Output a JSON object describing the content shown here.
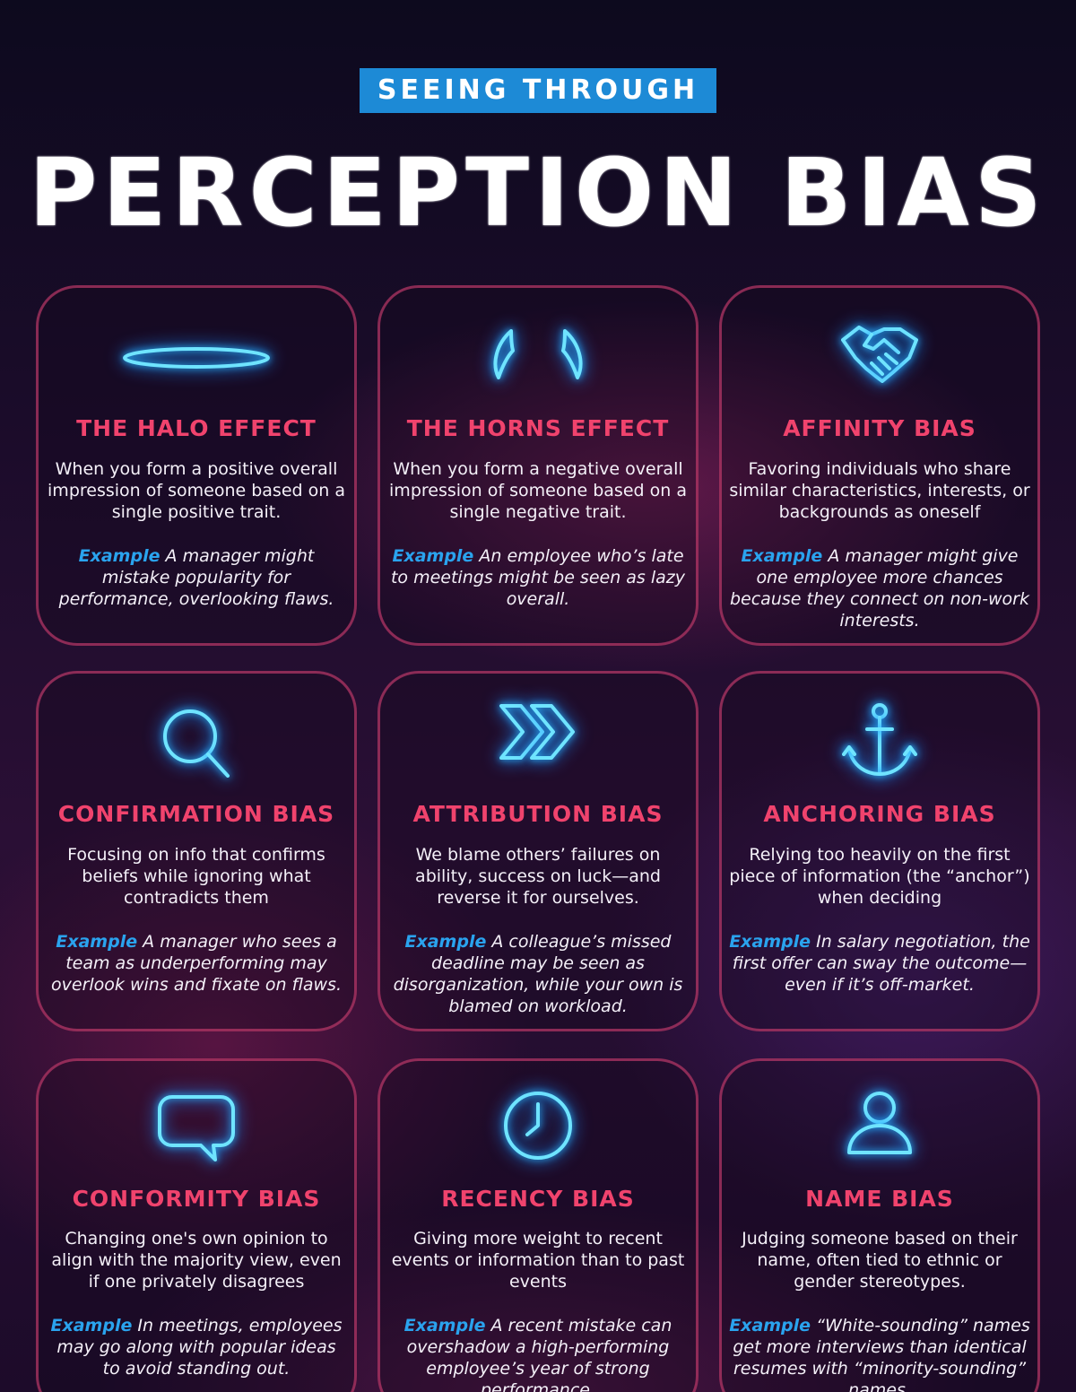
{
  "header": {
    "kicker": "SEEING THROUGH",
    "title": "PERCEPTION BIAS"
  },
  "example_label": "Example",
  "cards": [
    {
      "icon": "halo-icon",
      "title": "THE HALO EFFECT",
      "description": "When you form a positive overall impression of someone based on a single positive trait.",
      "example": "A manager might mistake popularity for performance, overlooking flaws."
    },
    {
      "icon": "horns-icon",
      "title": "THE HORNS EFFECT",
      "description": "When you form a negative overall impression of someone based on a single negative trait.",
      "example": "An employee who’s late to meetings might be seen as lazy overall."
    },
    {
      "icon": "handshake-icon",
      "title": "AFFINITY BIAS",
      "description": "Favoring individuals who share similar characteristics, interests, or backgrounds as oneself",
      "example": "A manager might give one employee more chances because they connect on non-work interests."
    },
    {
      "icon": "magnifier-icon",
      "title": "CONFIRMATION BIAS",
      "description": "Focusing on info that confirms beliefs while ignoring what contradicts them",
      "example": "A manager who sees a team as underperforming may overlook wins and fixate on flaws."
    },
    {
      "icon": "chevrons-icon",
      "title": "ATTRIBUTION BIAS",
      "description": "We blame others’ failures on ability, success on luck—and reverse it for ourselves.",
      "example": "A colleague’s missed deadline may be seen as disorganization, while your own is blamed on workload."
    },
    {
      "icon": "anchor-icon",
      "title": "ANCHORING BIAS",
      "description": "Relying too heavily on the first piece of information (the “anchor”) when deciding",
      "example": "In salary negotiation, the first offer can sway the outcome—even if it’s off-market."
    },
    {
      "icon": "speech-bubble-icon",
      "title": "CONFORMITY BIAS",
      "description": "Changing one's own opinion to align with the majority view, even if one privately disagrees",
      "example": "In meetings, employees may go along with popular ideas to avoid standing out."
    },
    {
      "icon": "clock-icon",
      "title": "RECENCY BIAS",
      "description": "Giving more weight to recent events or information than to past events",
      "example": "A recent mistake can overshadow a high-performing employee’s year of strong performance."
    },
    {
      "icon": "person-icon",
      "title": "NAME BIAS",
      "description": "Judging someone based on their name, often tied to ethnic or gender stereotypes.",
      "example": "“White-sounding” names get more interviews than identical resumes with “minority-sounding” names."
    }
  ],
  "colors": {
    "kicker_bg": "#1d8ad6",
    "card_title": "#f0436d",
    "example_label": "#2aa3ee",
    "neon_icon": "#6fe4ff"
  }
}
